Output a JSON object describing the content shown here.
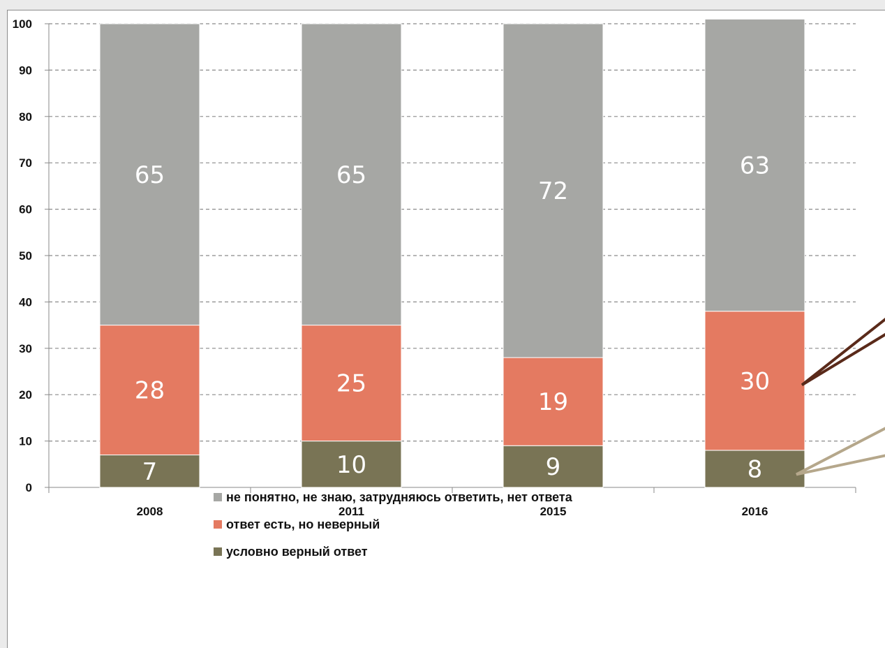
{
  "chart_data": {
    "type": "bar",
    "stacked": true,
    "categories": [
      "2008",
      "2011",
      "2015",
      "2016"
    ],
    "series": [
      {
        "name": "условно верный ответ",
        "values": [
          7,
          10,
          9,
          8
        ],
        "color": "#797455"
      },
      {
        "name": "ответ есть, но неверный",
        "values": [
          28,
          25,
          19,
          30
        ],
        "color": "#e47a61"
      },
      {
        "name": "не понятно, не знаю, затрудняюсь ответить, нет ответа",
        "values": [
          65,
          65,
          72,
          63
        ],
        "color": "#a6a7a4"
      }
    ],
    "ylim": [
      0,
      100
    ],
    "yticks": [
      "0",
      "10",
      "20",
      "30",
      "40",
      "50",
      "60",
      "70",
      "80",
      "90",
      "100"
    ],
    "grid": true,
    "legend_position": "bottom",
    "legend_order": [
      2,
      1,
      0
    ],
    "annotation_arrow_colors": [
      "#5a2a1a",
      "#b5a78b"
    ]
  }
}
